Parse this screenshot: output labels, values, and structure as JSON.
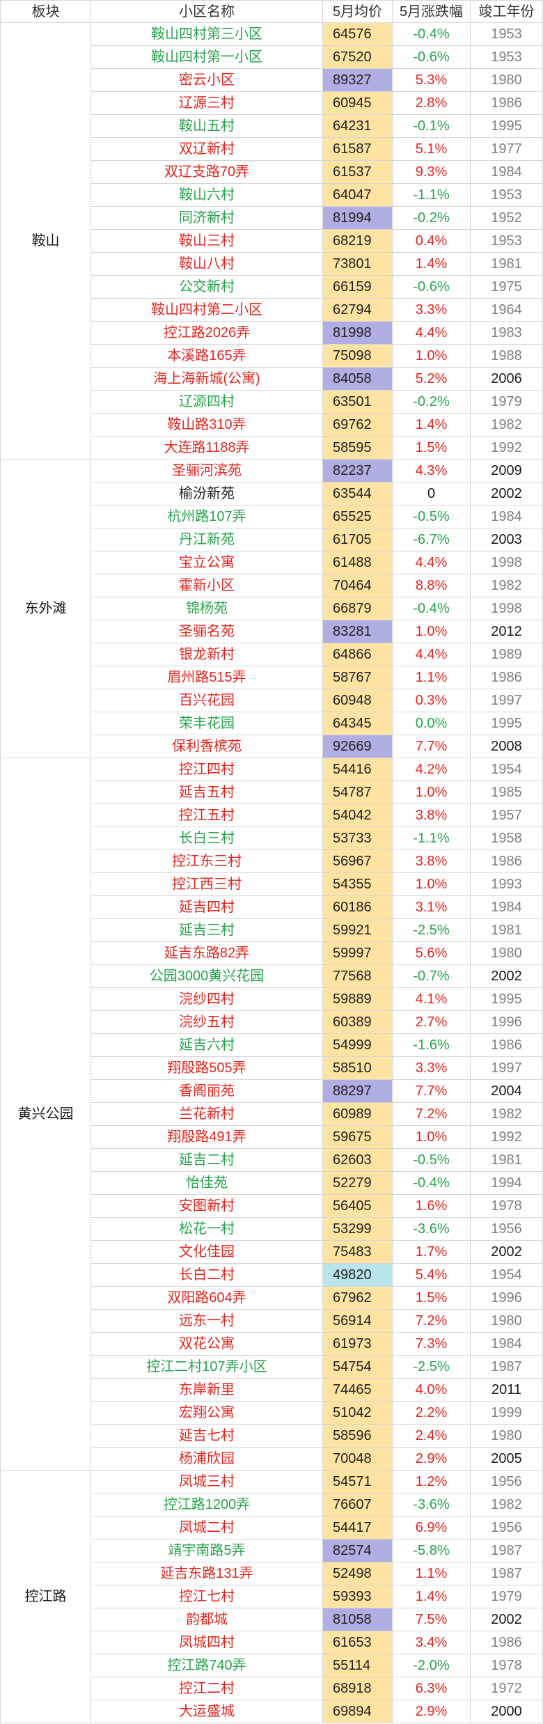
{
  "header": {
    "district": "板块",
    "name": "小区名称",
    "price": "5月均价",
    "change": "5月涨跌幅",
    "year": "竣工年份"
  },
  "colors": {
    "up": "#E2261F",
    "down": "#27A34B",
    "flat": "#1A1A1A",
    "price_bg": "#FFE3A3",
    "highlight_purple": "#AFAFE4",
    "highlight_cyan": "#B8E4EB",
    "year_old": "#808080",
    "year_new": "#1A1A1A"
  },
  "groups": [
    {
      "district": "鞍山",
      "rows": [
        {
          "name": "鞍山四村第三小区",
          "price": "64576",
          "change": "-0.4%",
          "year": "1953",
          "color": "#27A34B"
        },
        {
          "name": "鞍山四村第一小区",
          "price": "67520",
          "change": "-0.6%",
          "year": "1953",
          "color": "#27A34B"
        },
        {
          "name": "密云小区",
          "price": "89327",
          "change": "5.3%",
          "year": "1980",
          "color": "#E2261F",
          "bg": "#AFAFE4"
        },
        {
          "name": "辽源三村",
          "price": "60945",
          "change": "2.8%",
          "year": "1986",
          "color": "#E2261F"
        },
        {
          "name": "鞍山五村",
          "price": "64231",
          "change": "-0.1%",
          "year": "1995",
          "color": "#27A34B"
        },
        {
          "name": "双辽新村",
          "price": "61587",
          "change": "5.1%",
          "year": "1977",
          "color": "#E2261F"
        },
        {
          "name": "双辽支路70弄",
          "price": "61537",
          "change": "9.3%",
          "year": "1984",
          "color": "#E2261F"
        },
        {
          "name": "鞍山六村",
          "price": "64047",
          "change": "-1.1%",
          "year": "1953",
          "color": "#27A34B"
        },
        {
          "name": "同济新村",
          "price": "81994",
          "change": "-0.2%",
          "year": "1952",
          "color": "#27A34B",
          "bg": "#AFAFE4"
        },
        {
          "name": "鞍山三村",
          "price": "68219",
          "change": "0.4%",
          "year": "1953",
          "color": "#E2261F"
        },
        {
          "name": "鞍山八村",
          "price": "73801",
          "change": "1.4%",
          "year": "1981",
          "color": "#E2261F"
        },
        {
          "name": "公交新村",
          "price": "66159",
          "change": "-0.6%",
          "year": "1975",
          "color": "#27A34B"
        },
        {
          "name": "鞍山四村第二小区",
          "price": "62794",
          "change": "3.3%",
          "year": "1964",
          "color": "#E2261F"
        },
        {
          "name": "控江路2026弄",
          "price": "81998",
          "change": "4.4%",
          "year": "1983",
          "color": "#E2261F",
          "bg": "#AFAFE4"
        },
        {
          "name": "本溪路165弄",
          "price": "75098",
          "change": "1.0%",
          "year": "1988",
          "color": "#E2261F"
        },
        {
          "name": "海上海新城(公寓)",
          "price": "84058",
          "change": "5.2%",
          "year": "2006",
          "color": "#E2261F",
          "bg": "#AFAFE4"
        },
        {
          "name": "辽源四村",
          "price": "63501",
          "change": "-0.2%",
          "year": "1979",
          "color": "#27A34B"
        },
        {
          "name": "鞍山路310弄",
          "price": "69762",
          "change": "1.4%",
          "year": "1982",
          "color": "#E2261F"
        },
        {
          "name": "大连路1188弄",
          "price": "58595",
          "change": "1.5%",
          "year": "1992",
          "color": "#E2261F"
        }
      ]
    },
    {
      "district": "东外滩",
      "rows": [
        {
          "name": "圣骊河滨苑",
          "price": "82237",
          "change": "4.3%",
          "year": "2009",
          "color": "#E2261F",
          "bg": "#AFAFE4"
        },
        {
          "name": "榆汾新苑",
          "price": "63544",
          "change": "0",
          "year": "2002",
          "color": "#1A1A1A"
        },
        {
          "name": "杭州路107弄",
          "price": "65525",
          "change": "-0.5%",
          "year": "1984",
          "color": "#27A34B"
        },
        {
          "name": "丹江新苑",
          "price": "61705",
          "change": "-6.7%",
          "year": "2003",
          "color": "#27A34B"
        },
        {
          "name": "宝立公寓",
          "price": "61488",
          "change": "4.4%",
          "year": "1998",
          "color": "#E2261F"
        },
        {
          "name": "霍新小区",
          "price": "70464",
          "change": "8.8%",
          "year": "1982",
          "color": "#E2261F"
        },
        {
          "name": "锦杨苑",
          "price": "66879",
          "change": "-0.4%",
          "year": "1998",
          "color": "#27A34B"
        },
        {
          "name": "圣骊名苑",
          "price": "83281",
          "change": "1.0%",
          "year": "2012",
          "color": "#E2261F",
          "bg": "#AFAFE4"
        },
        {
          "name": "银龙新村",
          "price": "64866",
          "change": "4.4%",
          "year": "1989",
          "color": "#E2261F"
        },
        {
          "name": "眉州路515弄",
          "price": "58767",
          "change": "1.1%",
          "year": "1986",
          "color": "#E2261F"
        },
        {
          "name": "百兴花园",
          "price": "60948",
          "change": "0.3%",
          "year": "1997",
          "color": "#E2261F"
        },
        {
          "name": "荣丰花园",
          "price": "64345",
          "change": "0.0%",
          "year": "1995",
          "color": "#27A34B"
        },
        {
          "name": "保利香槟苑",
          "price": "92669",
          "change": "7.7%",
          "year": "2008",
          "color": "#E2261F",
          "bg": "#AFAFE4"
        }
      ]
    },
    {
      "district": "黄兴公园",
      "rows": [
        {
          "name": "控江四村",
          "price": "54416",
          "change": "4.2%",
          "year": "1954",
          "color": "#E2261F"
        },
        {
          "name": "延吉五村",
          "price": "54787",
          "change": "1.0%",
          "year": "1985",
          "color": "#E2261F"
        },
        {
          "name": "控江五村",
          "price": "54042",
          "change": "3.8%",
          "year": "1957",
          "color": "#E2261F"
        },
        {
          "name": "长白三村",
          "price": "53733",
          "change": "-1.1%",
          "year": "1958",
          "color": "#27A34B"
        },
        {
          "name": "控江东三村",
          "price": "56967",
          "change": "3.8%",
          "year": "1986",
          "color": "#E2261F"
        },
        {
          "name": "控江西三村",
          "price": "54355",
          "change": "1.0%",
          "year": "1993",
          "color": "#E2261F"
        },
        {
          "name": "延吉四村",
          "price": "60186",
          "change": "3.1%",
          "year": "1984",
          "color": "#E2261F"
        },
        {
          "name": "延吉三村",
          "price": "59921",
          "change": "-2.5%",
          "year": "1981",
          "color": "#27A34B"
        },
        {
          "name": "延吉东路82弄",
          "price": "59997",
          "change": "5.6%",
          "year": "1980",
          "color": "#E2261F"
        },
        {
          "name": "公园3000黄兴花园",
          "price": "77568",
          "change": "-0.7%",
          "year": "2002",
          "color": "#27A34B"
        },
        {
          "name": "浣纱四村",
          "price": "59889",
          "change": "4.1%",
          "year": "1995",
          "color": "#E2261F"
        },
        {
          "name": "浣纱五村",
          "price": "60389",
          "change": "2.7%",
          "year": "1996",
          "color": "#E2261F"
        },
        {
          "name": "延吉六村",
          "price": "54999",
          "change": "-1.6%",
          "year": "1986",
          "color": "#27A34B"
        },
        {
          "name": "翔殷路505弄",
          "price": "58510",
          "change": "3.3%",
          "year": "1997",
          "color": "#E2261F"
        },
        {
          "name": "香阁丽苑",
          "price": "88297",
          "change": "7.7%",
          "year": "2004",
          "color": "#E2261F",
          "bg": "#AFAFE4"
        },
        {
          "name": "兰花新村",
          "price": "60989",
          "change": "7.2%",
          "year": "1982",
          "color": "#E2261F"
        },
        {
          "name": "翔殷路491弄",
          "price": "59675",
          "change": "1.0%",
          "year": "1992",
          "color": "#E2261F"
        },
        {
          "name": "延吉二村",
          "price": "62603",
          "change": "-0.5%",
          "year": "1981",
          "color": "#27A34B"
        },
        {
          "name": "怡佳苑",
          "price": "52279",
          "change": "-0.4%",
          "year": "1994",
          "color": "#27A34B"
        },
        {
          "name": "安图新村",
          "price": "56405",
          "change": "1.6%",
          "year": "1978",
          "color": "#E2261F"
        },
        {
          "name": "松花一村",
          "price": "53299",
          "change": "-3.6%",
          "year": "1956",
          "color": "#27A34B"
        },
        {
          "name": "文化佳园",
          "price": "75483",
          "change": "1.7%",
          "year": "2002",
          "color": "#E2261F"
        },
        {
          "name": "长白二村",
          "price": "49820",
          "change": "5.4%",
          "year": "1954",
          "color": "#E2261F",
          "bg": "#B8E4EB"
        },
        {
          "name": "双阳路604弄",
          "price": "67962",
          "change": "1.5%",
          "year": "1996",
          "color": "#E2261F"
        },
        {
          "name": "远东一村",
          "price": "56914",
          "change": "7.2%",
          "year": "1980",
          "color": "#E2261F"
        },
        {
          "name": "双花公寓",
          "price": "61973",
          "change": "7.3%",
          "year": "1984",
          "color": "#E2261F"
        },
        {
          "name": "控江二村107弄小区",
          "price": "54754",
          "change": "-2.5%",
          "year": "1987",
          "color": "#27A34B"
        },
        {
          "name": "东岸新里",
          "price": "74465",
          "change": "4.0%",
          "year": "2011",
          "color": "#E2261F"
        },
        {
          "name": "宏翔公寓",
          "price": "51042",
          "change": "2.2%",
          "year": "1999",
          "color": "#E2261F"
        },
        {
          "name": "延吉七村",
          "price": "58596",
          "change": "2.4%",
          "year": "1980",
          "color": "#E2261F"
        },
        {
          "name": "杨浦欣园",
          "price": "70048",
          "change": "2.9%",
          "year": "2005",
          "color": "#E2261F"
        }
      ]
    },
    {
      "district": "控江路",
      "rows": [
        {
          "name": "凤城三村",
          "price": "54571",
          "change": "1.2%",
          "year": "1956",
          "color": "#E2261F"
        },
        {
          "name": "控江路1200弄",
          "price": "76607",
          "change": "-3.6%",
          "year": "1982",
          "color": "#27A34B"
        },
        {
          "name": "凤城二村",
          "price": "54417",
          "change": "6.9%",
          "year": "1956",
          "color": "#E2261F"
        },
        {
          "name": "靖宇南路5弄",
          "price": "82574",
          "change": "-5.8%",
          "year": "1987",
          "color": "#27A34B",
          "bg": "#AFAFE4"
        },
        {
          "name": "延吉东路131弄",
          "price": "52498",
          "change": "1.1%",
          "year": "1987",
          "color": "#E2261F"
        },
        {
          "name": "控江七村",
          "price": "59393",
          "change": "1.4%",
          "year": "1979",
          "color": "#E2261F"
        },
        {
          "name": "韵都城",
          "price": "81058",
          "change": "7.5%",
          "year": "2002",
          "color": "#E2261F",
          "bg": "#AFAFE4"
        },
        {
          "name": "凤城四村",
          "price": "61653",
          "change": "3.4%",
          "year": "1986",
          "color": "#E2261F"
        },
        {
          "name": "控江路740弄",
          "price": "55114",
          "change": "-2.0%",
          "year": "1978",
          "color": "#27A34B"
        },
        {
          "name": "控江二村",
          "price": "68918",
          "change": "6.3%",
          "year": "1972",
          "color": "#E2261F"
        },
        {
          "name": "大运盛城",
          "price": "69894",
          "change": "2.9%",
          "year": "2000",
          "color": "#E2261F"
        }
      ]
    }
  ]
}
